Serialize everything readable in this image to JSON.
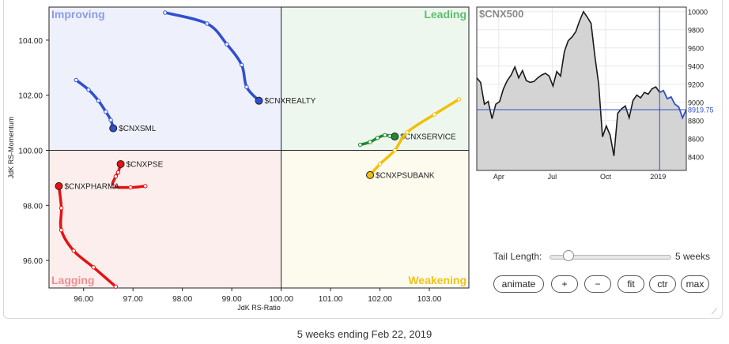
{
  "rrg": {
    "quadrants": {
      "improving": "Improving",
      "leading": "Leading",
      "lagging": "Lagging",
      "weakening": "Weakening"
    },
    "colors": {
      "improving_bg": "#eef1fb",
      "leading_bg": "#eef7ee",
      "lagging_bg": "#fdeeee",
      "weakening_bg": "#fcfbee",
      "improving_label": "#8c9ce6",
      "leading_label": "#5cbf6e",
      "lagging_label": "#ef8e8e",
      "weakening_label": "#f0c21e"
    }
  },
  "chart_data": [
    {
      "type": "scatter",
      "xlabel": "JdK RS-Ratio",
      "ylabel": "JdK RS-Momentum",
      "xlim": [
        95.3,
        103.8
      ],
      "ylim": [
        95.0,
        105.2
      ],
      "x_ticks": [
        "96.00",
        "97.00",
        "98.00",
        "99.00",
        "100.00",
        "101.00",
        "102.00",
        "103.00"
      ],
      "y_ticks": [
        "96.00",
        "98.00",
        "100.00",
        "102.00",
        "104.00"
      ],
      "center": [
        100,
        100
      ],
      "series": [
        {
          "name": "$CNXREALTY",
          "color": "#2f4fd0",
          "points": [
            [
              97.65,
              105.0
            ],
            [
              98.5,
              104.6
            ],
            [
              98.9,
              103.85
            ],
            [
              99.2,
              103.1
            ],
            [
              99.3,
              102.3
            ],
            [
              99.55,
              101.8
            ]
          ]
        },
        {
          "name": "$CNXSML",
          "color": "#2f4fd0",
          "points": [
            [
              95.85,
              102.55
            ],
            [
              96.1,
              102.2
            ],
            [
              96.3,
              101.8
            ],
            [
              96.45,
              101.4
            ],
            [
              96.55,
              101.1
            ],
            [
              96.6,
              100.8
            ]
          ]
        },
        {
          "name": "$CNXSERVICE",
          "color": "#1f8a2e",
          "points": [
            [
              101.6,
              100.2
            ],
            [
              101.8,
              100.3
            ],
            [
              101.95,
              100.45
            ],
            [
              102.1,
              100.55
            ],
            [
              102.2,
              100.52
            ],
            [
              102.3,
              100.5
            ]
          ]
        },
        {
          "name": "$CNXPSUBANK",
          "color": "#f0c00a",
          "points": [
            [
              103.6,
              101.85
            ],
            [
              103.1,
              101.3
            ],
            [
              102.55,
              100.65
            ],
            [
              102.3,
              100.0
            ],
            [
              102.0,
              99.5
            ],
            [
              101.8,
              99.1
            ]
          ]
        },
        {
          "name": "$CNXPSE",
          "color": "#e81010",
          "points": [
            [
              97.25,
              98.7
            ],
            [
              96.95,
              98.65
            ],
            [
              96.6,
              98.7
            ],
            [
              96.65,
              99.05
            ],
            [
              96.7,
              99.2
            ],
            [
              96.75,
              99.5
            ]
          ]
        },
        {
          "name": "$CNXPHARMA",
          "color": "#e81010",
          "points": [
            [
              96.65,
              95.05
            ],
            [
              96.2,
              95.75
            ],
            [
              95.8,
              96.35
            ],
            [
              95.55,
              97.1
            ],
            [
              95.55,
              97.9
            ],
            [
              95.5,
              98.7
            ]
          ]
        }
      ]
    },
    {
      "type": "line",
      "title": "$CNX500",
      "current_value": "8919.75",
      "x_ticks": [
        "Apr",
        "Jul",
        "Oct",
        "2019"
      ],
      "y_ticks": [
        "8400",
        "8600",
        "8800",
        "9000",
        "9200",
        "9400",
        "9600",
        "9800",
        "10000"
      ],
      "ylim": [
        8250,
        10050
      ],
      "values": [
        9270,
        9220,
        8980,
        9010,
        8820,
        8980,
        9010,
        9150,
        9240,
        9300,
        9390,
        9270,
        9350,
        9240,
        9220,
        9230,
        9270,
        9300,
        9320,
        9290,
        9180,
        9340,
        9290,
        9560,
        9680,
        9720,
        9780,
        9900,
        10000,
        9940,
        9870,
        9510,
        9200,
        8620,
        8740,
        8640,
        8410,
        8880,
        8930,
        8960,
        8830,
        9020,
        9080,
        9050,
        9110,
        9090,
        9150,
        9170,
        9110,
        9130,
        9040,
        9060,
        8980,
        8950,
        8830,
        8920
      ],
      "highlight_start_index": 48,
      "line_color": "#1a1a1a",
      "highlight_color": "#2f4fd0"
    }
  ],
  "controls": {
    "tail_label": "Tail Length:",
    "tail_value": 5,
    "tail_value_text": "5 weeks",
    "buttons": {
      "animate": "animate",
      "plus": "+",
      "minus": "−",
      "fit": "fit",
      "ctr": "ctr",
      "max": "max"
    }
  },
  "caption": "5 weeks ending Feb 22, 2019",
  "resize_glyph": "⟋"
}
